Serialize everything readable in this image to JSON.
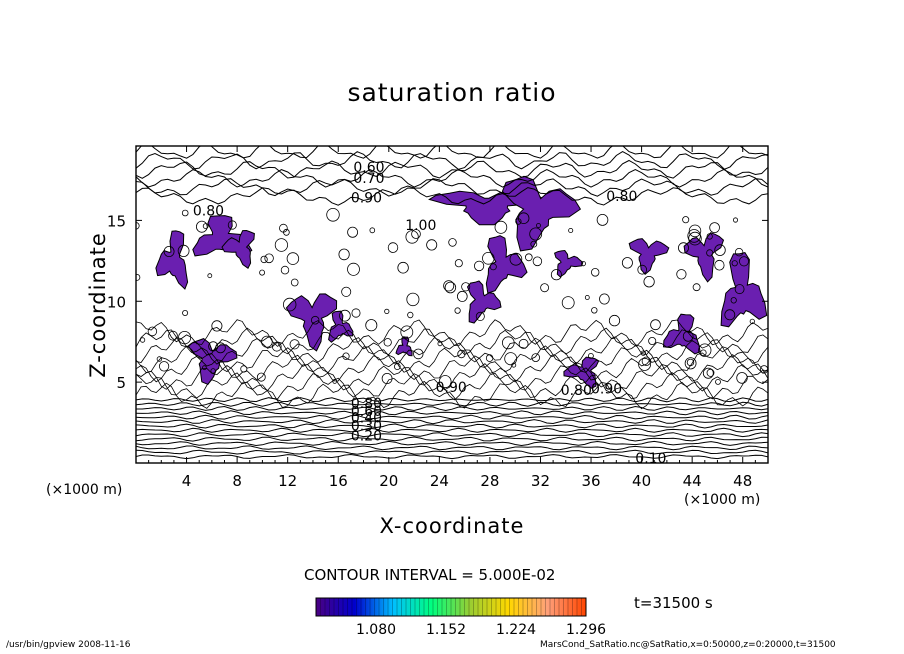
{
  "chart_data": {
    "type": "contour",
    "title": "saturation ratio",
    "xlabel": "X-coordinate",
    "ylabel": "Z-coordinate",
    "x_unit": "(×1000 m)",
    "y_unit": "(×1000 m)",
    "xlim": [
      0,
      50
    ],
    "ylim": [
      0,
      19.6
    ],
    "x_ticks": [
      4,
      8,
      12,
      16,
      20,
      24,
      28,
      32,
      36,
      40,
      44,
      48
    ],
    "y_ticks": [
      5,
      10,
      15
    ],
    "grid": false,
    "contour_interval_text": "CONTOUR INTERVAL = 5.000E-02",
    "contour_labels": [
      {
        "text": "0.60",
        "x": 17.2,
        "y": 18.0
      },
      {
        "text": "0.70",
        "x": 17.2,
        "y": 17.3
      },
      {
        "text": "0.90",
        "x": 17.0,
        "y": 16.1
      },
      {
        "text": "0.80",
        "x": 37.2,
        "y": 16.2
      },
      {
        "text": "0.80",
        "x": 4.5,
        "y": 15.3
      },
      {
        "text": "1.00",
        "x": 21.3,
        "y": 14.4
      },
      {
        "text": "0.80",
        "x": 17.0,
        "y": 3.4
      },
      {
        "text": "0.60",
        "x": 17.0,
        "y": 2.9
      },
      {
        "text": "0.40",
        "x": 17.0,
        "y": 2.5
      },
      {
        "text": "0.30",
        "x": 17.0,
        "y": 2.0
      },
      {
        "text": "0.20",
        "x": 17.0,
        "y": 1.4
      },
      {
        "text": "0.90",
        "x": 23.7,
        "y": 4.4
      },
      {
        "text": "0.80",
        "x": 33.6,
        "y": 4.2
      },
      {
        "text": "0.90",
        "x": 36.0,
        "y": 4.3
      },
      {
        "text": "0.10",
        "x": 39.5,
        "y": 0.0
      }
    ],
    "filled_regions": [
      {
        "x": 23.5,
        "y": 14.9,
        "w": 8.5,
        "h": 2.2,
        "x_max": 28.5
      },
      {
        "x": 28.7,
        "y": 13.4,
        "w": 6.0,
        "h": 4.6
      },
      {
        "x": 27.3,
        "y": 10.5,
        "w": 3.4,
        "h": 3.6
      },
      {
        "x": 4.4,
        "y": 12.5,
        "w": 4.7,
        "h": 2.8
      },
      {
        "x": 1.7,
        "y": 10.7,
        "w": 2.6,
        "h": 3.7
      },
      {
        "x": 7.0,
        "y": 12.2,
        "w": 2.6,
        "h": 2.3
      },
      {
        "x": 12.1,
        "y": 7.3,
        "w": 3.8,
        "h": 3.6
      },
      {
        "x": 4.1,
        "y": 5.1,
        "w": 3.7,
        "h": 2.8
      },
      {
        "x": 25.9,
        "y": 8.7,
        "w": 2.8,
        "h": 2.6
      },
      {
        "x": 46.1,
        "y": 8.0,
        "w": 3.7,
        "h": 5.0
      },
      {
        "x": 41.8,
        "y": 6.6,
        "w": 3.0,
        "h": 2.6
      },
      {
        "x": 34.0,
        "y": 4.7,
        "w": 2.9,
        "h": 1.9
      },
      {
        "x": 43.5,
        "y": 11.5,
        "w": 3.0,
        "h": 3.0
      },
      {
        "x": 39.0,
        "y": 11.9,
        "w": 3.0,
        "h": 2.2
      },
      {
        "x": 32.9,
        "y": 11.6,
        "w": 2.3,
        "h": 1.6
      },
      {
        "x": 15.1,
        "y": 7.4,
        "w": 2.0,
        "h": 2.0
      },
      {
        "x": 20.6,
        "y": 6.5,
        "w": 1.3,
        "h": 1.3
      }
    ],
    "colorbar": {
      "tick_labels": [
        "1.080",
        "1.152",
        "1.224",
        "1.296"
      ],
      "colors": [
        "#4b0082",
        "#0000cd",
        "#00bfff",
        "#00ff7f",
        "#9acd32",
        "#ffd700",
        "#ffa07a",
        "#ff4500"
      ]
    },
    "fill_color": "#6a1fb0",
    "time_label": "t=31500 s"
  },
  "footer": {
    "left": "/usr/bin/gpview   2008-11-16",
    "right": "MarsCond_SatRatio.nc@SatRatio,x=0:50000,z=0:20000,t=31500"
  }
}
